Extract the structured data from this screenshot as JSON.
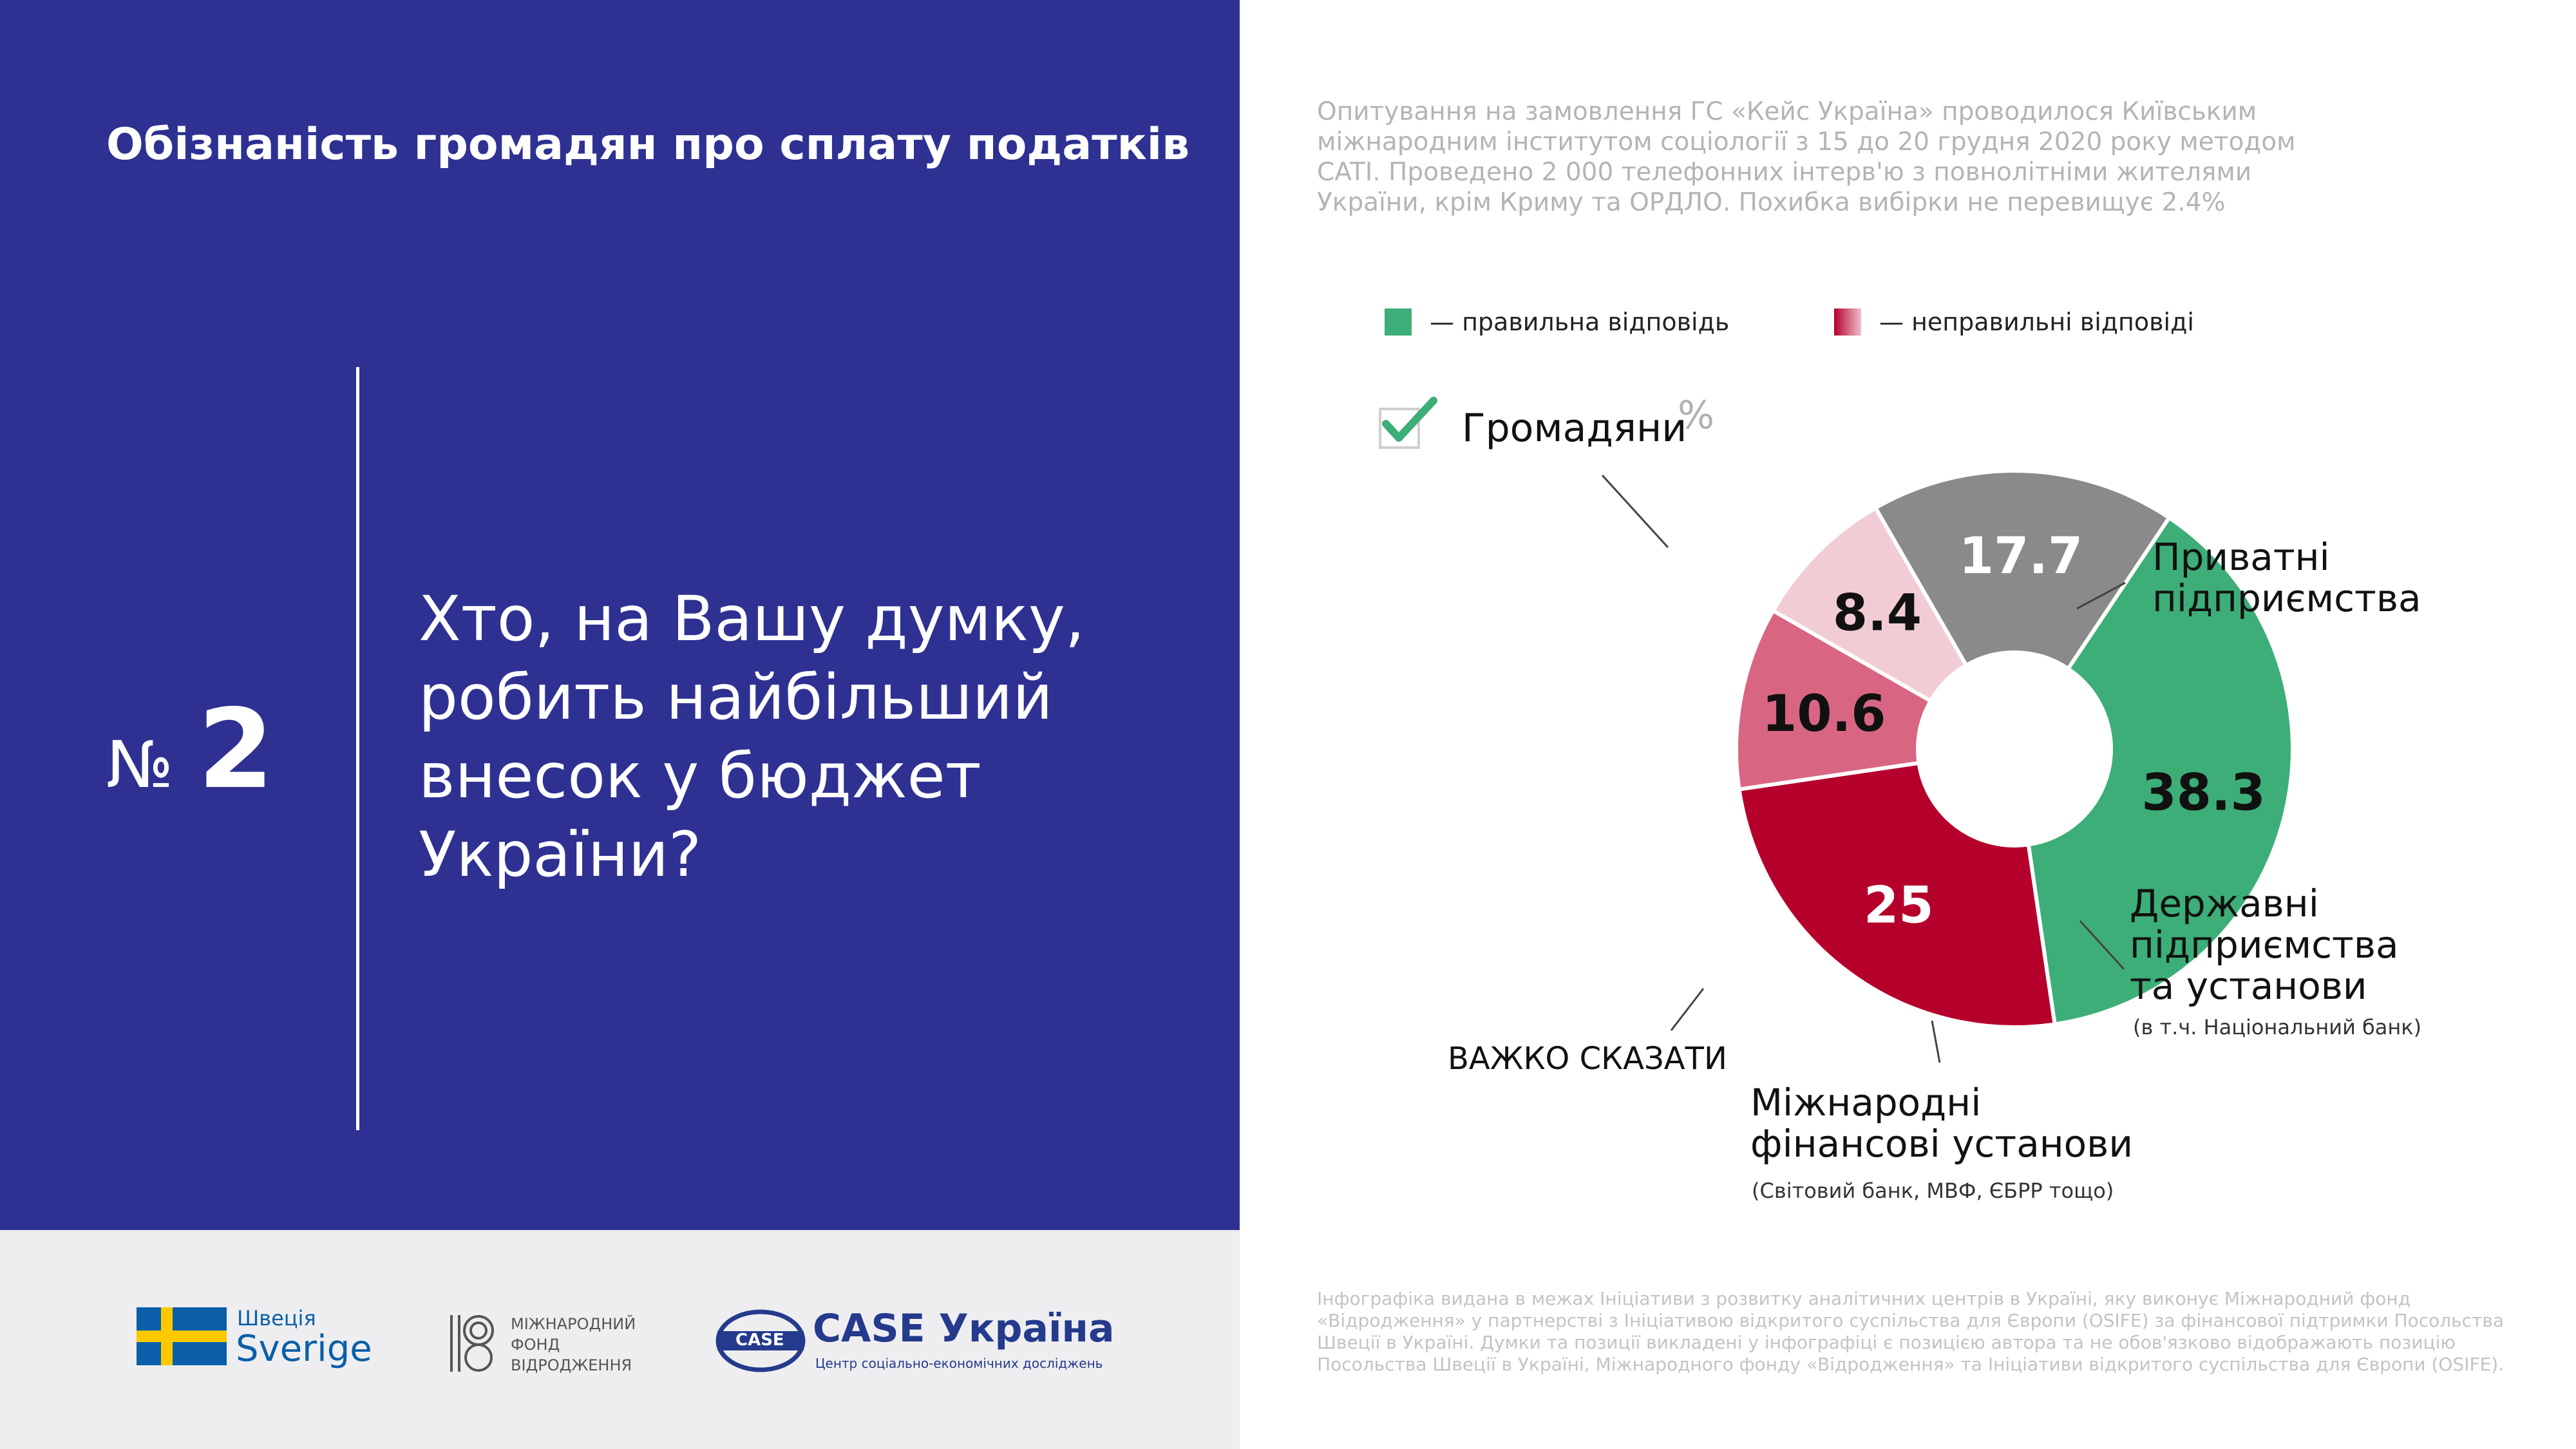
{
  "header": {
    "title": "Обізнаність громадян про сплату податків",
    "question_number_prefix": "№",
    "question_number": "2",
    "question": "Хто, на Вашу думку, робить найбільший внесок у бюджет України?"
  },
  "survey_note": "Опитування на замовлення ГС «Кейс Україна» проводилося Київським міжнародним інститутом соціології з 15 до 20 грудня 2020 року методом CATI. Проведено 2 000 телефонних інтерв'ю з повнолітніми жителями України, крім Криму та ОРДЛО. Похибка вибірки не перевищує 2.4%",
  "legend": {
    "correct": "— правильна відповідь",
    "incorrect": "— неправильні відповіді"
  },
  "correct_answer": "Громадяни",
  "unit": "%",
  "colors": {
    "background_panel": "#2e3192",
    "correct": "#3dae78",
    "incorrect_1": "#b5002c",
    "incorrect_2": "#d86683",
    "incorrect_3": "#f2ccd5",
    "unknown": "#8a8a8a"
  },
  "chart_data": {
    "type": "pie",
    "donut": true,
    "slices": [
      {
        "label": "Громадяни",
        "value": 38.3,
        "display": "38.3",
        "color": "#3dae78",
        "correct": true
      },
      {
        "label": "Приватні підприємства",
        "value": 25,
        "display": "25",
        "color": "#b5002c",
        "correct": false
      },
      {
        "label": "Державні підприємства та установи",
        "note": "(в т.ч. Національний банк)",
        "value": 10.6,
        "display": "10.6",
        "color": "#d86683",
        "correct": false
      },
      {
        "label": "Міжнародні фінансові установи",
        "note": "(Світовий банк, МВФ, ЄБРР тощо)",
        "value": 8.4,
        "display": "8.4",
        "color": "#f2ccd5",
        "correct": false
      },
      {
        "label": "ВАЖКО СКАЗАТИ",
        "value": 17.7,
        "display": "17.7",
        "color": "#8a8a8a",
        "correct": false
      }
    ]
  },
  "categories": {
    "private_line1": "Приватні",
    "private_line2": "підприємства",
    "state_line1": "Державні",
    "state_line2": "підприємства",
    "state_line3": "та установи",
    "state_note": "(в т.ч. Національний банк)",
    "intl_line1": "Міжнародні",
    "intl_line2": "фінансові установи",
    "intl_note": "(Світовий банк, МВФ, ЄБРР тощо)",
    "unknown": "ВАЖКО СКАЗАТИ"
  },
  "logos": {
    "sweden_top": "Швеція",
    "sweden_bottom": "Sverige",
    "irf_line1": "МІЖНАРОДНИЙ",
    "irf_line2": "ФОНД",
    "irf_line3": "ВІДРОДЖЕННЯ",
    "case_badge": "CASE",
    "case_name": "CASE Україна",
    "case_sub": "Центр соціально-економічних досліджень"
  },
  "disclaimer": "Інфографіка видана в межах Ініціативи з розвитку аналітичних центрів в Україні, яку виконує Міжнародний фонд «Відродження» у партнерстві з Ініціативою відкритого суспільства для Європи (OSIFE) за фінансової підтримки Посольства Швеції в Україні. Думки та позиції викладені у інфографіці є позицією автора та не обов'язково відображають позицію Посольства Швеції в Україні, Міжнародного фонду «Відродження» та Ініціативи відкритого суспільства для Європи (OSIFE)."
}
